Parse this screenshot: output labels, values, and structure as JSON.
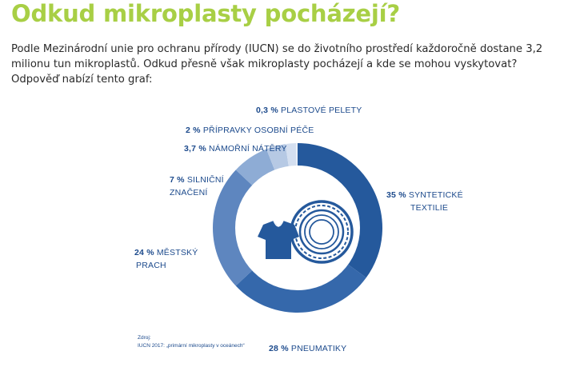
{
  "heading": "Odkud mikroplasty pocházejí?",
  "intro": "Podle Mezinárodní unie pro ochranu přírody (IUCN) se do životního prostředí každoročně dostane 3,2 milionu tun mikroplastů. Odkud přesně však mikroplasty pocházejí a kde se mohou vyskytovat? Odpověď nabízí tento graf:",
  "chart_data": {
    "type": "pie",
    "variant": "donut",
    "slices": [
      {
        "pct_label": "35 %",
        "name_line1": "SYNTETICKÉ",
        "name_line2": "TEXTILIE",
        "value": 35,
        "color": "#25599c"
      },
      {
        "pct_label": "28 %",
        "name_line1": "PNEUMATIKY",
        "name_line2": "",
        "value": 28,
        "color": "#3568ab"
      },
      {
        "pct_label": "24 %",
        "name_line1": "MĚSTSKÝ",
        "name_line2": "PRACH",
        "value": 24,
        "color": "#5e86bf"
      },
      {
        "pct_label": "7 %",
        "name_line1": "SILNIČNÍ",
        "name_line2": "ZNAČENÍ",
        "value": 7,
        "color": "#8eacd5"
      },
      {
        "pct_label": "3,7 %",
        "name_line1": "NÁMOŘNÍ NÁTĚRY",
        "name_line2": "",
        "value": 3.7,
        "color": "#b6c9e4"
      },
      {
        "pct_label": "2 %",
        "name_line1": "PŘÍPRAVKY OSOBNÍ PÉČE",
        "name_line2": "",
        "value": 2,
        "color": "#d4dff0"
      },
      {
        "pct_label": "0,3 %",
        "name_line1": "PLASTOVÉ PELETY",
        "name_line2": "",
        "value": 0.3,
        "color": "#e9eff8"
      }
    ],
    "source_line1": "Zdroj:",
    "source_line2": "IUCN 2017: „primární mikroplasty v oceánech“"
  },
  "colors": {
    "heading": "#a8cf45",
    "label": "#1c4a8c",
    "icon": "#25599c"
  },
  "icons": [
    "t-shirt-icon",
    "tire-icon"
  ]
}
